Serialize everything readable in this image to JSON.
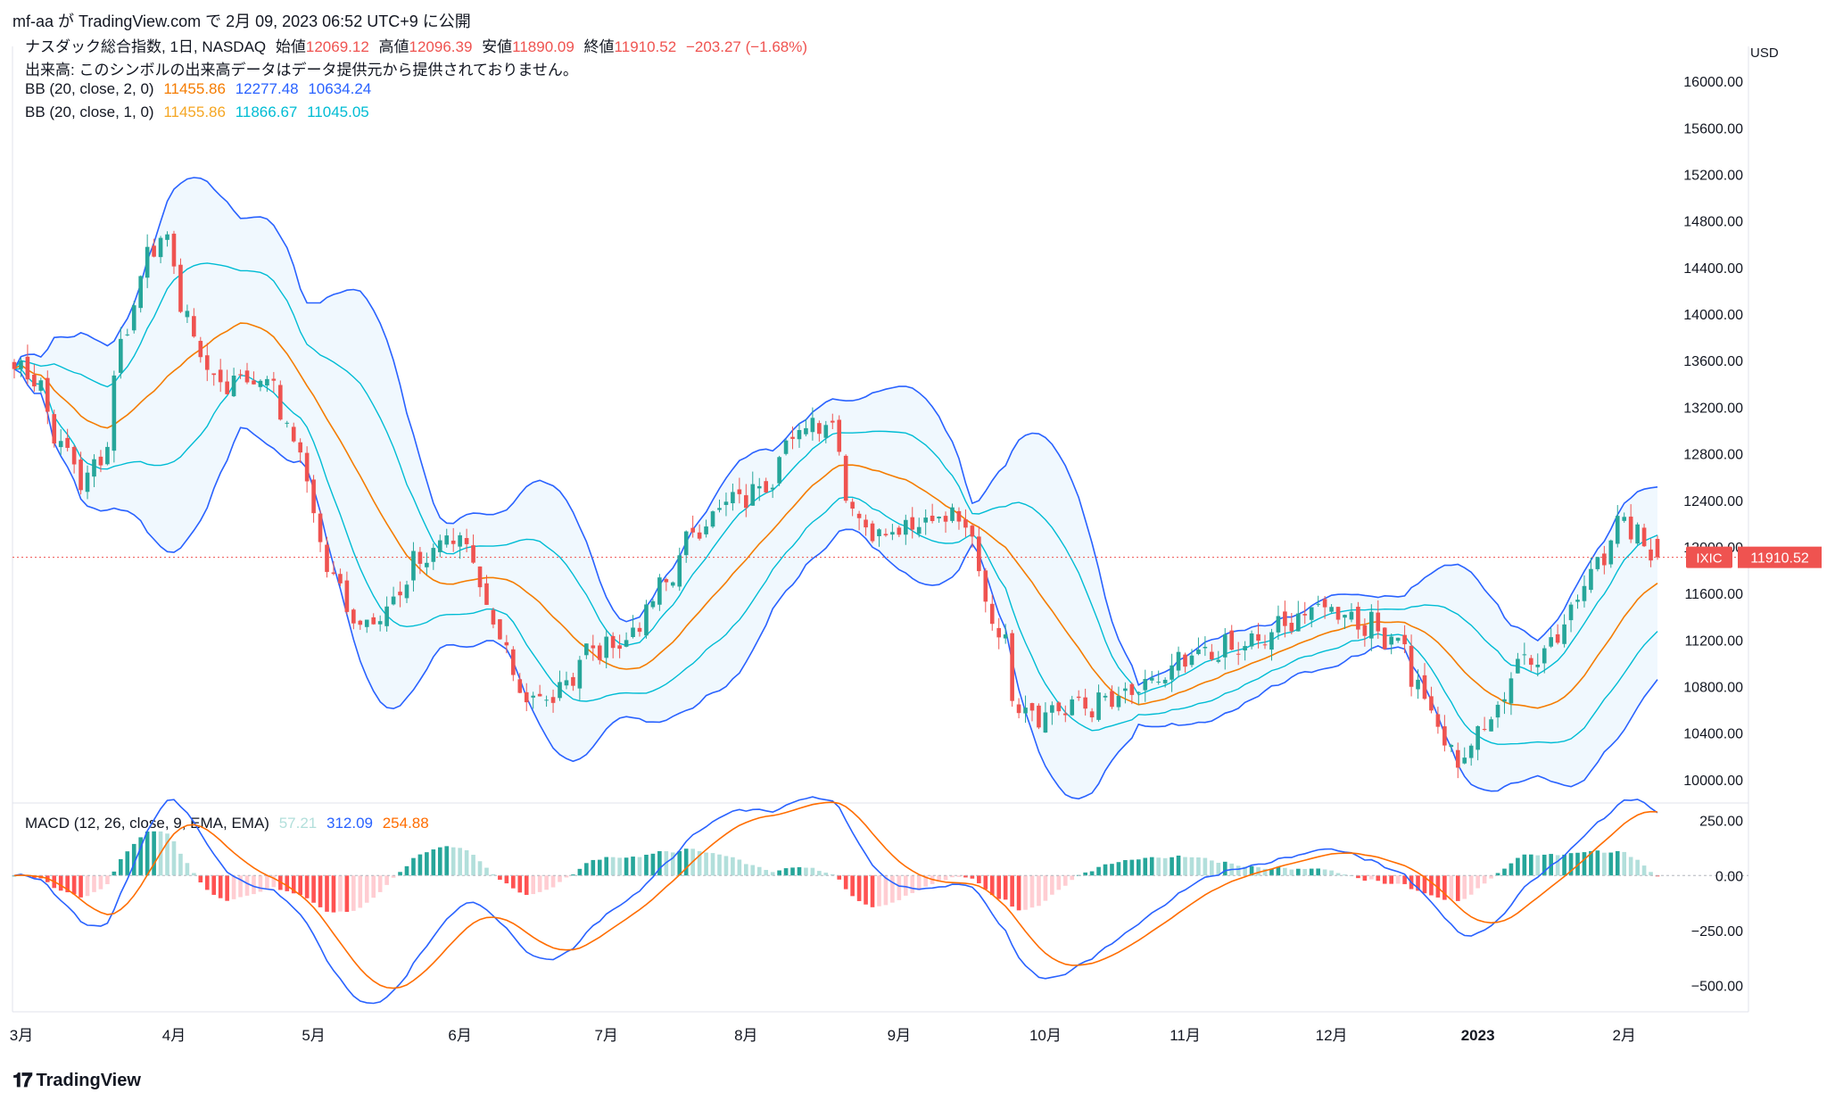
{
  "header": {
    "publish_line": "mf-aa が TradingView.com で 2月 09, 2023 06:52 UTC+9 に公開"
  },
  "legend": {
    "symbol": "ナスダック総合指数, 1日, NASDAQ",
    "open_label": "始値",
    "open": "12069.12",
    "high_label": "高値",
    "high": "12096.39",
    "low_label": "安値",
    "low": "11890.09",
    "close_label": "終値",
    "close": "11910.52",
    "change": "−203.27 (−1.68%)",
    "volume_line": "出来高: このシンボルの出来高データはデータ提供元から提供されておりません。",
    "bb2_label": "BB (20, close, 2, 0)",
    "bb2_basis": "11455.86",
    "bb2_upper": "12277.48",
    "bb2_lower": "10634.24",
    "bb1_label": "BB (20, close, 1, 0)",
    "bb1_basis": "11455.86",
    "bb1_upper": "11866.67",
    "bb1_lower": "11045.05",
    "macd_label": "MACD (12, 26, close, 9, EMA, EMA)",
    "macd_hist": "57.21",
    "macd_line": "312.09",
    "macd_signal": "254.88"
  },
  "price_axis": {
    "currency": "USD",
    "ticks": [
      "16000.00",
      "15600.00",
      "15200.00",
      "14800.00",
      "14400.00",
      "14000.00",
      "13600.00",
      "13200.00",
      "12800.00",
      "12400.00",
      "12000.00",
      "11600.00",
      "11200.00",
      "10800.00",
      "10400.00",
      "10000.00"
    ],
    "symbol_tag": "IXIC",
    "last_price": "11910.52"
  },
  "macd_axis": {
    "ticks": [
      "250.00",
      "0.00",
      "−250.00",
      "−500.00"
    ]
  },
  "time_axis": {
    "labels": [
      "3月",
      "4月",
      "5月",
      "6月",
      "7月",
      "8月",
      "9月",
      "10月",
      "11月",
      "12月",
      "2023",
      "2月"
    ]
  },
  "colors": {
    "up": "#26a69a",
    "down": "#ef5350",
    "bb_basis": "#f57c00",
    "bb2_band": "#2962ff",
    "bb1_band": "#00bcd4",
    "band_fill": "#e3f2fd",
    "macd_line": "#2962ff",
    "signal_line": "#ff6d00"
  },
  "watermark": "TradingView",
  "chart_data": {
    "type": "candlestick",
    "title": "ナスダック総合指数, 1日, NASDAQ",
    "ylabel": "USD",
    "ylim": [
      9800,
      16300
    ],
    "x_range": [
      "2022-02-28",
      "2023-02-08"
    ],
    "key_closes": [
      {
        "date": "2022-03-01",
        "close": 13530
      },
      {
        "date": "2022-03-14",
        "close": 12580
      },
      {
        "date": "2022-03-29",
        "close": 14620
      },
      {
        "date": "2022-04-11",
        "close": 13410
      },
      {
        "date": "2022-04-20",
        "close": 13450
      },
      {
        "date": "2022-05-11",
        "close": 11364
      },
      {
        "date": "2022-05-31",
        "close": 12080
      },
      {
        "date": "2022-06-16",
        "close": 10646
      },
      {
        "date": "2022-07-01",
        "close": 11127
      },
      {
        "date": "2022-07-29",
        "close": 12391
      },
      {
        "date": "2022-08-16",
        "close": 13103
      },
      {
        "date": "2022-08-26",
        "close": 12142
      },
      {
        "date": "2022-09-12",
        "close": 12266
      },
      {
        "date": "2022-09-30",
        "close": 10576
      },
      {
        "date": "2022-10-13",
        "close": 10650
      },
      {
        "date": "2022-11-10",
        "close": 11114
      },
      {
        "date": "2022-12-01",
        "close": 11482
      },
      {
        "date": "2022-12-13",
        "close": 11256
      },
      {
        "date": "2022-12-28",
        "close": 10213
      },
      {
        "date": "2023-01-13",
        "close": 11079
      },
      {
        "date": "2023-02-02",
        "close": 12200
      },
      {
        "date": "2023-02-08",
        "close": 11910.52
      }
    ],
    "last_bar": {
      "open": 12069.12,
      "high": 12096.39,
      "low": 11890.09,
      "close": 11910.52,
      "change": -203.27,
      "change_pct": -1.68
    },
    "bb_2std": {
      "basis": 11455.86,
      "upper": 12277.48,
      "lower": 10634.24
    },
    "bb_1std": {
      "basis": 11455.86,
      "upper": 11866.67,
      "lower": 11045.05
    },
    "macd": {
      "ylim": [
        -620,
        330
      ],
      "last": {
        "histogram": 57.21,
        "macd": 312.09,
        "signal": 254.88
      }
    }
  }
}
